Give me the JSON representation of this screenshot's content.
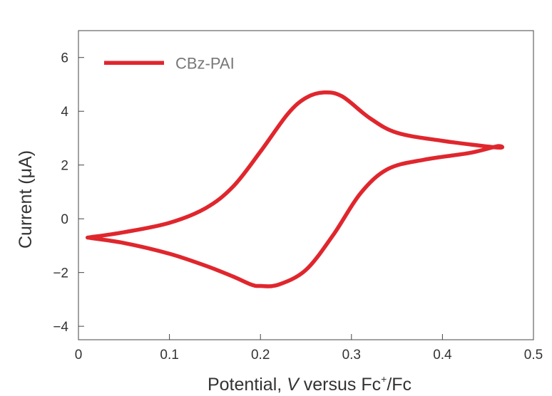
{
  "chart_data": {
    "type": "line",
    "title": "",
    "xlabel_parts": {
      "prefix": "Potential, ",
      "italic": "V",
      "middle": " versus Fc",
      "sup": "+",
      "suffix": "/Fc"
    },
    "ylabel": "Current (μA)",
    "xlim": [
      0,
      0.5
    ],
    "ylim": [
      -4.5,
      7
    ],
    "xticks": [
      0,
      0.1,
      0.2,
      0.3,
      0.4,
      0.5
    ],
    "xtick_labels": [
      "0",
      "0.1",
      "0.2",
      "0.3",
      "0.4",
      "0.5"
    ],
    "yticks": [
      -4,
      -2,
      0,
      2,
      4,
      6
    ],
    "ytick_labels": [
      "−4",
      "−2",
      "0",
      "2",
      "4",
      "6"
    ],
    "grid": false,
    "legend_position": "top-left",
    "series": [
      {
        "name": "CBz-PAI",
        "color": "#e0262d",
        "x": [
          0.01,
          0.05,
          0.1,
          0.14,
          0.17,
          0.2,
          0.23,
          0.25,
          0.27,
          0.29,
          0.32,
          0.35,
          0.4,
          0.46,
          0.46,
          0.43,
          0.38,
          0.34,
          0.31,
          0.28,
          0.25,
          0.22,
          0.2,
          0.19,
          0.17,
          0.14,
          0.1,
          0.05,
          0.01
        ],
        "y": [
          -0.7,
          -0.5,
          -0.15,
          0.4,
          1.2,
          2.5,
          3.9,
          4.5,
          4.7,
          4.55,
          3.75,
          3.2,
          2.9,
          2.65,
          2.7,
          2.45,
          2.2,
          1.85,
          0.95,
          -0.6,
          -1.9,
          -2.45,
          -2.5,
          -2.45,
          -2.15,
          -1.75,
          -1.3,
          -0.9,
          -0.7
        ]
      }
    ]
  }
}
